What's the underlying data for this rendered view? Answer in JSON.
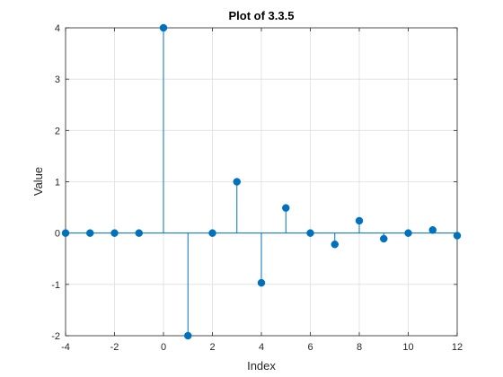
{
  "chart_data": {
    "type": "stem",
    "title": "Plot of 3.3.5",
    "xlabel": "Index",
    "ylabel": "Value",
    "xlim": [
      -4,
      12
    ],
    "ylim": [
      -2,
      4
    ],
    "xticks": [
      -4,
      -2,
      0,
      2,
      4,
      6,
      8,
      10,
      12
    ],
    "yticks": [
      -2,
      -1,
      0,
      1,
      2,
      3,
      4
    ],
    "grid": true,
    "box": true,
    "series": [
      {
        "color": "#0072BD",
        "x": [
          -4,
          -3,
          -2,
          -1,
          0,
          1,
          2,
          3,
          4,
          5,
          6,
          7,
          8,
          9,
          10,
          11,
          12
        ],
        "y": [
          0,
          0,
          0,
          0,
          4,
          -2,
          0,
          1,
          -0.97,
          0.49,
          0,
          -0.22,
          0.24,
          -0.11,
          0,
          0.06,
          -0.05
        ]
      }
    ]
  }
}
